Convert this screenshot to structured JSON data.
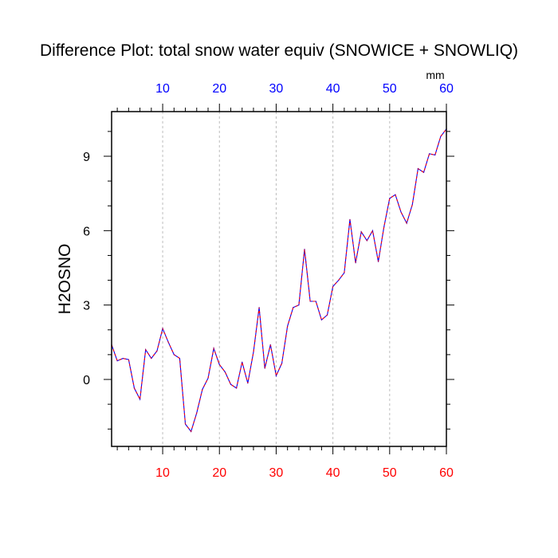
{
  "chart_data": {
    "type": "line",
    "title": "Difference Plot: total snow water equiv (SNOWICE + SNOWLIQ)",
    "ylabel": "H2OSNO",
    "units": "mm",
    "xlim": [
      1,
      60
    ],
    "ylim": [
      -2.7,
      10.8
    ],
    "x_ticks": [
      10,
      20,
      30,
      40,
      50,
      60
    ],
    "y_ticks": [
      0,
      3,
      6,
      9
    ],
    "grid": "vertical dashed",
    "colors": {
      "bottom_tick_labels": "#ff0000",
      "top_tick_labels": "#0000ff",
      "series_1": "#0000ff",
      "series_2": "#ff0000"
    },
    "series": [
      {
        "x": [
          1,
          2,
          3,
          4,
          5,
          6,
          7,
          8,
          9,
          10,
          11,
          12,
          13,
          14,
          15,
          16,
          17,
          18,
          19,
          20,
          21,
          22,
          23,
          24,
          25,
          26,
          27,
          28,
          29,
          30,
          31,
          32,
          33,
          34,
          35,
          36,
          37,
          38,
          39,
          40,
          41,
          42,
          43,
          44,
          45,
          46,
          47,
          48,
          49,
          50,
          51,
          52,
          53,
          54,
          55,
          56,
          57,
          58,
          59,
          60
        ],
        "values": [
          1.4,
          0.75,
          0.85,
          0.8,
          -0.35,
          -0.8,
          1.2,
          0.85,
          1.15,
          2.05,
          1.5,
          1.0,
          0.85,
          -1.8,
          -2.1,
          -1.35,
          -0.4,
          0.05,
          1.25,
          0.6,
          0.3,
          -0.2,
          -0.35,
          0.7,
          -0.15,
          1.1,
          2.9,
          0.45,
          1.4,
          0.15,
          0.65,
          2.15,
          2.9,
          3.0,
          5.25,
          3.15,
          3.15,
          2.4,
          2.6,
          3.75,
          4.0,
          4.3,
          6.45,
          4.7,
          5.95,
          5.6,
          6.0,
          4.75,
          6.15,
          7.3,
          7.45,
          6.75,
          6.3,
          7.05,
          8.5,
          8.35,
          9.1,
          9.05,
          9.8,
          10.1
        ]
      }
    ]
  }
}
